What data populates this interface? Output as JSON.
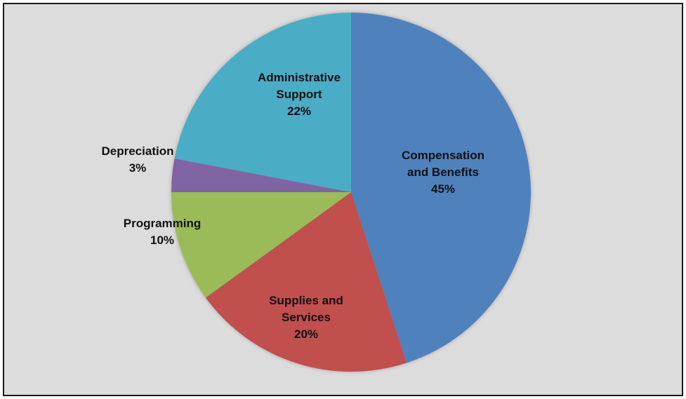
{
  "chart_data": {
    "type": "pie",
    "title": "",
    "legend": "none",
    "start_angle_deg": 0,
    "direction": "clockwise",
    "slices": [
      {
        "label_lines": [
          "Compensation",
          "and Benefits"
        ],
        "pct_label": "45%",
        "value": 45,
        "color": "#4f81bd"
      },
      {
        "label_lines": [
          "Supplies and",
          "Services"
        ],
        "pct_label": "20%",
        "value": 20,
        "color": "#c0504d"
      },
      {
        "label_lines": [
          "Programming"
        ],
        "pct_label": "10%",
        "value": 10,
        "color": "#9bbb59"
      },
      {
        "label_lines": [
          "Depreciation"
        ],
        "pct_label": "3%",
        "value": 3,
        "color": "#8064a2"
      },
      {
        "label_lines": [
          "Administrative",
          "Support"
        ],
        "pct_label": "22%",
        "value": 22,
        "color": "#4bacc6"
      }
    ]
  }
}
